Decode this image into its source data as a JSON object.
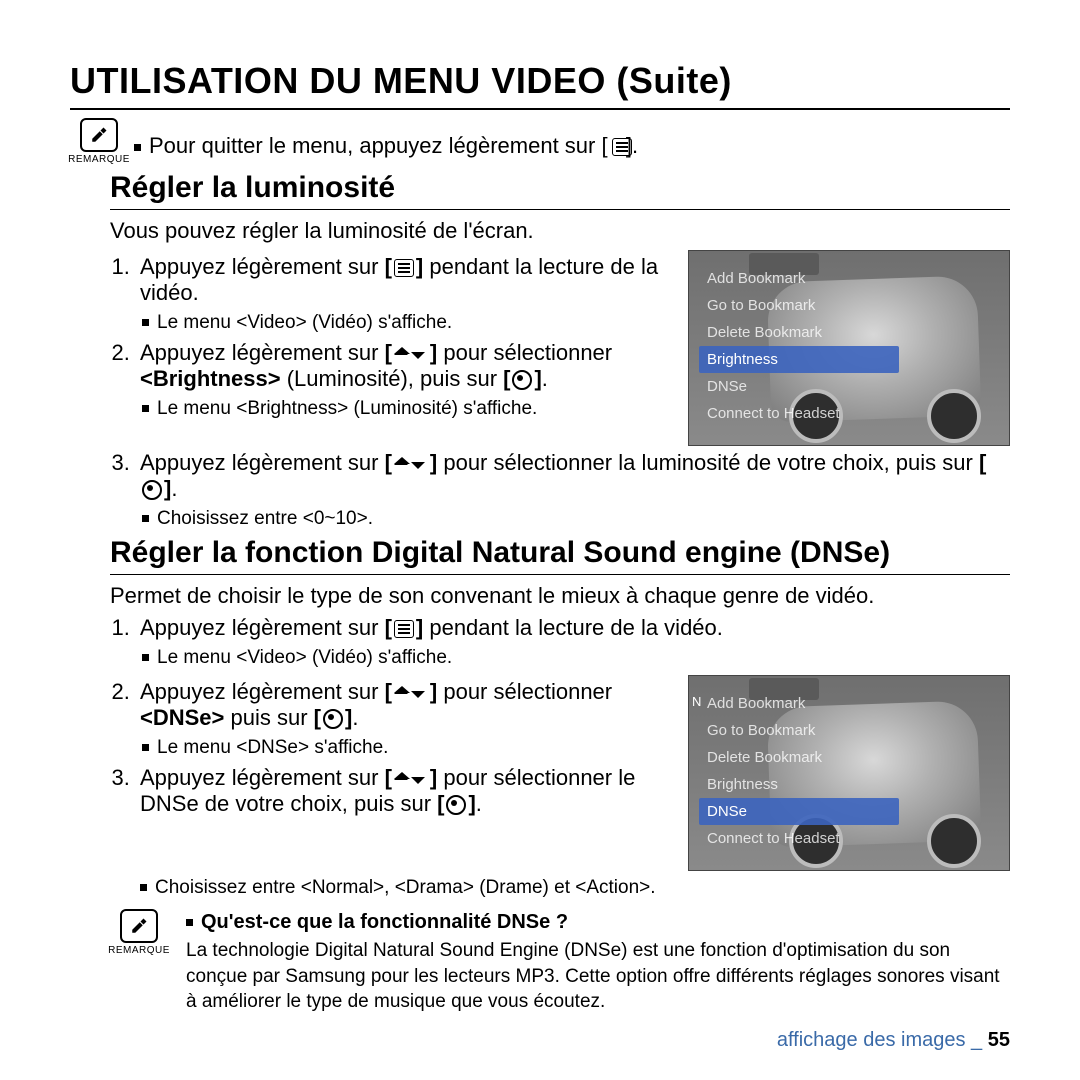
{
  "title": "UTILISATION DU MENU VIDEO (Suite)",
  "topRemark": {
    "label": "REMARQUE",
    "text": "Pour quitter le menu, appuyez légèrement sur [   ]."
  },
  "section1": {
    "heading": "Régler la luminosité",
    "intro": "Vous pouvez régler la luminosité de l'écran.",
    "step1a": "Appuyez légèrement sur ",
    "step1b": " pendant la lecture de la vidéo.",
    "step1sub": "Le menu <Video> (Vidéo) s'affiche.",
    "step2a": "Appuyez légèrement sur ",
    "step2b": " pour sélectionner ",
    "step2bold": "<Brightness>",
    "step2c": " (Luminosité), puis sur ",
    "step2sub": "Le menu <Brightness> (Luminosité) s'affiche.",
    "step3a": "Appuyez légèrement sur ",
    "step3b": " pour sélectionner la luminosité de votre choix, puis sur ",
    "step3sub": "Choisissez entre <0~10>."
  },
  "device1": {
    "items": [
      "Add Bookmark",
      "Go to Bookmark",
      "Delete Bookmark",
      "Brightness",
      "DNSe",
      "Connect to Headset"
    ],
    "selected": "Brightness"
  },
  "section2": {
    "heading": "Régler la fonction Digital Natural Sound engine (DNSe)",
    "intro": "Permet de choisir le type de son convenant le mieux à chaque genre de vidéo.",
    "step1a": "Appuyez légèrement sur ",
    "step1b": " pendant la lecture de la vidéo.",
    "step1sub": "Le menu <Video> (Vidéo) s'affiche.",
    "step2a": "Appuyez légèrement sur ",
    "step2b": " pour sélectionner ",
    "step2bold": "<DNSe>",
    "step2c": " puis sur ",
    "step2sub": "Le menu <DNSe> s'affiche.",
    "step3a": "Appuyez légèrement sur ",
    "step3b": " pour sélectionner le DNSe de votre choix, puis sur ",
    "step3sub": "Choisissez entre <Normal>, <Drama> (Drame) et <Action>."
  },
  "device2": {
    "items": [
      "Add Bookmark",
      "Go to Bookmark",
      "Delete Bookmark",
      "Brightness",
      "DNSe",
      "Connect to Headset"
    ],
    "selected": "DNSe"
  },
  "bottomRemark": {
    "label": "REMARQUE",
    "q": "Qu'est-ce que la fonctionnalité DNSe ?",
    "text": "La technologie Digital Natural Sound Engine (DNSe) est une fonction d'optimisation du son conçue par Samsung pour les lecteurs MP3. Cette option offre différents réglages sonores visant à améliorer le type de musique que vous écoutez."
  },
  "footer": {
    "text": "affichage des images _ ",
    "page": "55"
  }
}
